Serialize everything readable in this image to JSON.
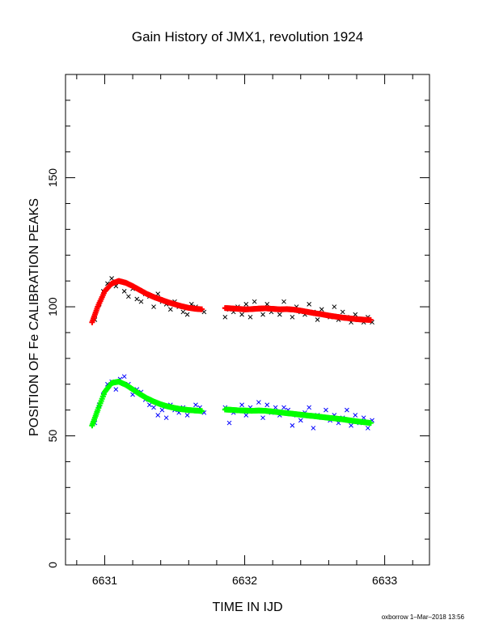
{
  "footer": "oxborrow  1–Mar–2018 13:56",
  "colors": {
    "upper_points": "#000000",
    "upper_fit": "#ff0000",
    "lower_points": "#0000ff",
    "lower_fit": "#00ff00"
  },
  "chart_data": {
    "type": "scatter",
    "title": "Gain History of JMX1, revolution 1924",
    "xlabel": "TIME IN IJD",
    "ylabel": "POSITION OF Fe CALIBRATION PEAKS",
    "xlim": [
      6630.72,
      6633.32
    ],
    "ylim": [
      0,
      190
    ],
    "x_ticks": [
      6631,
      6632,
      6633
    ],
    "x_tick_labels": [
      "6631",
      "6632",
      "6633"
    ],
    "y_ticks": [
      0,
      50,
      100,
      150
    ],
    "y_tick_labels": [
      "0",
      "50",
      "100",
      "150"
    ],
    "grid": false,
    "series": [
      {
        "marker": "x",
        "color": "black",
        "x": [
          6630.93,
          6630.96,
          6630.99,
          6631.02,
          6631.05,
          6631.08,
          6631.11,
          6631.14,
          6631.17,
          6631.2,
          6631.23,
          6631.26,
          6631.29,
          6631.32,
          6631.35,
          6631.38,
          6631.41,
          6631.44,
          6631.47,
          6631.5,
          6631.53,
          6631.56,
          6631.59,
          6631.62,
          6631.65,
          6631.68,
          6631.71,
          6631.86,
          6631.89,
          6631.92,
          6631.95,
          6631.98,
          6632.01,
          6632.04,
          6632.07,
          6632.1,
          6632.13,
          6632.16,
          6632.19,
          6632.22,
          6632.25,
          6632.28,
          6632.31,
          6632.34,
          6632.37,
          6632.4,
          6632.43,
          6632.46,
          6632.49,
          6632.52,
          6632.55,
          6632.58,
          6632.61,
          6632.64,
          6632.67,
          6632.7,
          6632.73,
          6632.76,
          6632.79,
          6632.82,
          6632.85,
          6632.88,
          6632.91
        ],
        "values": [
          95,
          101,
          106,
          109,
          111,
          108,
          110,
          106,
          104,
          107,
          103,
          102,
          105,
          104,
          100,
          105,
          102,
          101,
          99,
          102,
          100,
          98,
          97,
          101,
          100,
          99,
          98,
          96,
          99,
          98,
          100,
          97,
          101,
          96,
          102,
          99,
          97,
          101,
          98,
          99,
          97,
          102,
          99,
          96,
          100,
          98,
          97,
          101,
          98,
          95,
          99,
          97,
          96,
          100,
          95,
          98,
          96,
          94,
          97,
          95,
          94,
          96,
          94
        ]
      },
      {
        "marker": "+",
        "color": "red",
        "x": [
          6630.91,
          6630.95,
          6631.0,
          6631.05,
          6631.1,
          6631.15,
          6631.2,
          6631.25,
          6631.3,
          6631.35,
          6631.4,
          6631.45,
          6631.5,
          6631.55,
          6631.6,
          6631.65,
          6631.7,
          6631.86,
          6631.9,
          6631.95,
          6632.0,
          6632.05,
          6632.1,
          6632.15,
          6632.2,
          6632.25,
          6632.3,
          6632.35,
          6632.4,
          6632.45,
          6632.5,
          6632.55,
          6632.6,
          6632.65,
          6632.7,
          6632.75,
          6632.8,
          6632.85,
          6632.9
        ],
        "values": [
          94,
          100,
          106,
          109,
          110,
          109.3,
          108,
          106.5,
          105,
          103.8,
          102.8,
          101.8,
          101,
          100.2,
          99.6,
          99.2,
          99,
          99.5,
          99.4,
          99.2,
          99,
          99.1,
          99.3,
          99.4,
          99.2,
          99,
          99.1,
          98.9,
          98.5,
          98,
          97.5,
          97.1,
          96.6,
          96.2,
          95.8,
          95.5,
          95.2,
          95,
          94.9
        ]
      },
      {
        "marker": "x",
        "color": "blue",
        "x": [
          6630.93,
          6630.96,
          6630.99,
          6631.02,
          6631.05,
          6631.08,
          6631.11,
          6631.14,
          6631.17,
          6631.2,
          6631.23,
          6631.26,
          6631.29,
          6631.32,
          6631.35,
          6631.38,
          6631.41,
          6631.44,
          6631.47,
          6631.5,
          6631.53,
          6631.56,
          6631.59,
          6631.62,
          6631.65,
          6631.68,
          6631.71,
          6631.86,
          6631.89,
          6631.92,
          6631.95,
          6631.98,
          6632.01,
          6632.04,
          6632.07,
          6632.1,
          6632.13,
          6632.16,
          6632.19,
          6632.22,
          6632.25,
          6632.28,
          6632.31,
          6632.34,
          6632.37,
          6632.4,
          6632.43,
          6632.46,
          6632.49,
          6632.52,
          6632.55,
          6632.58,
          6632.61,
          6632.64,
          6632.67,
          6632.7,
          6632.73,
          6632.76,
          6632.79,
          6632.82,
          6632.85,
          6632.88,
          6632.91
        ],
        "values": [
          55,
          62,
          66,
          70,
          71,
          68,
          72,
          73,
          70,
          66,
          68,
          67,
          64,
          62,
          61,
          58,
          60,
          57,
          62,
          60,
          59,
          61,
          58,
          60,
          62,
          61,
          59,
          61,
          55,
          59,
          60,
          62,
          58,
          61,
          60,
          63,
          57,
          62,
          59,
          61,
          58,
          61,
          60,
          54,
          58,
          56,
          59,
          61,
          53,
          58,
          57,
          60,
          56,
          58,
          55,
          57,
          60,
          54,
          58,
          55,
          57,
          53,
          56
        ]
      },
      {
        "marker": "+",
        "color": "green",
        "x": [
          6630.91,
          6630.95,
          6631.0,
          6631.05,
          6631.1,
          6631.15,
          6631.2,
          6631.25,
          6631.3,
          6631.35,
          6631.4,
          6631.45,
          6631.5,
          6631.55,
          6631.6,
          6631.65,
          6631.7,
          6631.86,
          6631.9,
          6631.95,
          6632.0,
          6632.05,
          6632.1,
          6632.15,
          6632.2,
          6632.25,
          6632.3,
          6632.35,
          6632.4,
          6632.45,
          6632.5,
          6632.55,
          6632.6,
          6632.65,
          6632.7,
          6632.75,
          6632.8,
          6632.85,
          6632.9
        ],
        "values": [
          54,
          60,
          67,
          70.5,
          71,
          69.8,
          68,
          66.2,
          64.6,
          63.3,
          62.2,
          61.4,
          60.8,
          60.3,
          60,
          59.8,
          59.6,
          60.2,
          60.1,
          59.9,
          59.8,
          59.7,
          59.8,
          59.7,
          59.4,
          59.1,
          58.8,
          58.5,
          58.2,
          57.9,
          57.6,
          57.3,
          57,
          56.7,
          56.4,
          56,
          55.6,
          55.3,
          55
        ]
      }
    ]
  }
}
